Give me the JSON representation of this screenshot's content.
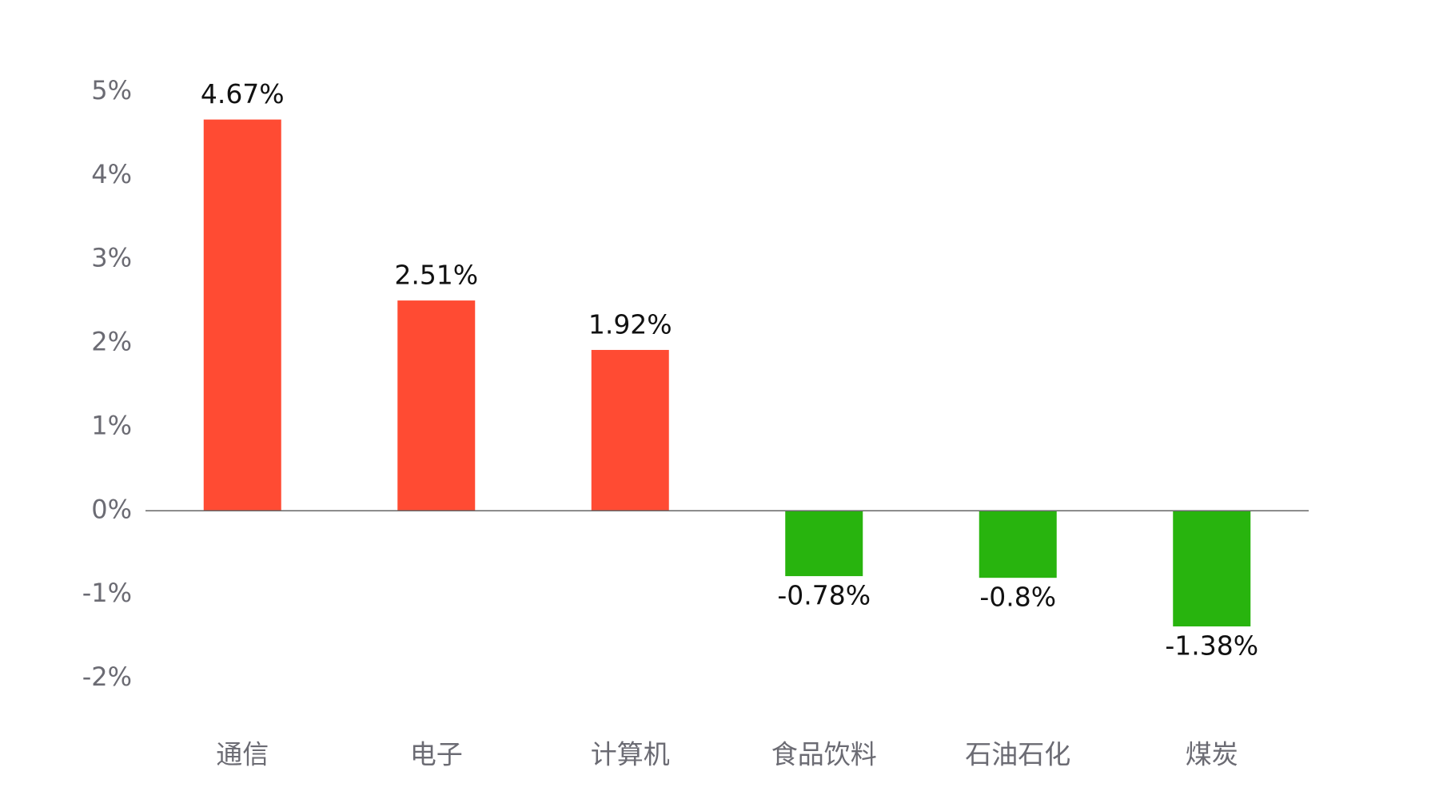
{
  "chart_data": {
    "type": "bar",
    "categories": [
      "通信",
      "电子",
      "计算机",
      "食品饮料",
      "石油石化",
      "煤炭"
    ],
    "values": [
      4.67,
      2.51,
      1.92,
      -0.78,
      -0.8,
      -1.38
    ],
    "value_labels": [
      "4.67%",
      "2.51%",
      "1.92%",
      "-0.78%",
      "-0.8%",
      "-1.38%"
    ],
    "colors": [
      "#ff4b33",
      "#ff4b33",
      "#ff4b33",
      "#28b40e",
      "#28b40e",
      "#28b40e"
    ],
    "ylim": [
      -2,
      5
    ],
    "yticks": [
      {
        "value": 5,
        "label": "5%"
      },
      {
        "value": 4,
        "label": "4%"
      },
      {
        "value": 3,
        "label": "3%"
      },
      {
        "value": 2,
        "label": "2%"
      },
      {
        "value": 1,
        "label": "1%"
      },
      {
        "value": 0,
        "label": "0%"
      },
      {
        "value": -1,
        "label": "-1%"
      },
      {
        "value": -2,
        "label": "-2%"
      }
    ],
    "grid": false
  }
}
